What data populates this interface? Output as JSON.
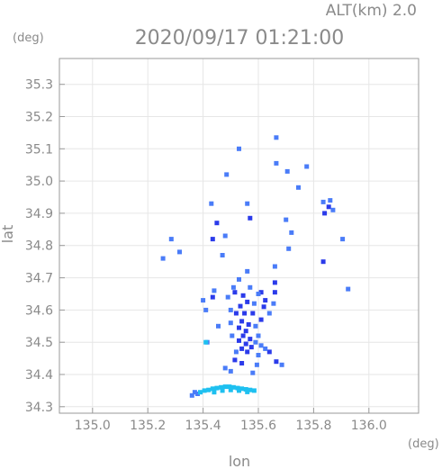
{
  "chart_data": {
    "type": "scatter",
    "title": "2020/09/17 01:21:00",
    "subtitle": "ALT(km) 2.0",
    "xlabel": "lon",
    "ylabel": "lat",
    "x_unit": "(deg)",
    "y_unit": "(deg)",
    "xlim": [
      134.88,
      136.18
    ],
    "ylim": [
      34.28,
      35.38
    ],
    "xticks": [
      135.0,
      135.2,
      135.4,
      135.6,
      135.8,
      136.0
    ],
    "xtick_labels": [
      "135.0",
      "135.2",
      "135.4",
      "135.6",
      "135.8",
      "136.0"
    ],
    "yticks": [
      34.3,
      34.4,
      34.5,
      34.6,
      34.7,
      34.8,
      34.9,
      35.0,
      35.1,
      35.2,
      35.3
    ],
    "ytick_labels": [
      "34.3",
      "34.4",
      "34.5",
      "34.6",
      "34.7",
      "34.8",
      "34.9",
      "35.0",
      "35.1",
      "35.2",
      "35.3"
    ],
    "grid": true,
    "colors": {
      "intense": "#2b3bea",
      "moderate": "#4a7cf8",
      "weak": "#1ec0f0",
      "axis": "#9a9a9a",
      "text": "#8a8a8a"
    },
    "series": [
      {
        "level": "intense",
        "points": [
          [
            135.515,
            34.655
          ],
          [
            135.545,
            34.645
          ],
          [
            135.56,
            34.625
          ],
          [
            135.535,
            34.612
          ],
          [
            135.52,
            34.59
          ],
          [
            135.55,
            34.59
          ],
          [
            135.58,
            34.59
          ],
          [
            135.54,
            34.565
          ],
          [
            135.565,
            34.555
          ],
          [
            135.53,
            34.545
          ],
          [
            135.555,
            34.535
          ],
          [
            135.545,
            34.52
          ],
          [
            135.57,
            34.51
          ],
          [
            135.53,
            34.505
          ],
          [
            135.555,
            34.495
          ],
          [
            135.575,
            34.485
          ],
          [
            135.54,
            34.48
          ],
          [
            135.56,
            34.47
          ],
          [
            135.515,
            34.445
          ],
          [
            135.54,
            34.435
          ],
          [
            135.62,
            34.61
          ],
          [
            135.625,
            34.63
          ],
          [
            135.61,
            34.655
          ],
          [
            135.66,
            34.655
          ],
          [
            135.66,
            34.685
          ],
          [
            135.665,
            34.44
          ],
          [
            135.64,
            34.47
          ],
          [
            135.435,
            34.82
          ],
          [
            135.45,
            34.87
          ],
          [
            135.57,
            34.885
          ],
          [
            135.855,
            34.92
          ],
          [
            135.84,
            34.9
          ],
          [
            135.835,
            34.75
          ],
          [
            135.435,
            34.64
          ],
          [
            135.61,
            34.57
          ]
        ]
      },
      {
        "level": "moderate",
        "points": [
          [
            135.49,
            34.64
          ],
          [
            135.5,
            34.6
          ],
          [
            135.5,
            34.56
          ],
          [
            135.505,
            34.52
          ],
          [
            135.59,
            34.55
          ],
          [
            135.6,
            34.52
          ],
          [
            135.59,
            34.5
          ],
          [
            135.6,
            34.46
          ],
          [
            135.48,
            34.42
          ],
          [
            135.5,
            34.41
          ],
          [
            135.58,
            34.405
          ],
          [
            135.595,
            34.43
          ],
          [
            135.625,
            34.48
          ],
          [
            135.61,
            34.49
          ],
          [
            135.56,
            34.72
          ],
          [
            135.53,
            34.695
          ],
          [
            135.57,
            34.67
          ],
          [
            135.51,
            34.67
          ],
          [
            135.6,
            34.65
          ],
          [
            135.585,
            34.62
          ],
          [
            135.255,
            34.76
          ],
          [
            135.285,
            34.82
          ],
          [
            135.315,
            34.78
          ],
          [
            135.43,
            34.93
          ],
          [
            135.56,
            34.93
          ],
          [
            135.7,
            34.88
          ],
          [
            135.71,
            34.79
          ],
          [
            135.72,
            34.84
          ],
          [
            135.745,
            34.98
          ],
          [
            135.775,
            35.045
          ],
          [
            135.665,
            35.055
          ],
          [
            135.705,
            35.03
          ],
          [
            135.485,
            35.02
          ],
          [
            135.53,
            35.1
          ],
          [
            135.665,
            35.135
          ],
          [
            135.925,
            34.665
          ],
          [
            135.905,
            34.82
          ],
          [
            135.86,
            34.94
          ],
          [
            135.835,
            34.935
          ],
          [
            135.87,
            34.91
          ],
          [
            135.415,
            34.5
          ],
          [
            135.41,
            34.6
          ],
          [
            135.44,
            34.66
          ],
          [
            135.4,
            34.63
          ],
          [
            135.47,
            34.77
          ],
          [
            135.48,
            34.83
          ],
          [
            135.66,
            34.735
          ],
          [
            135.655,
            34.62
          ],
          [
            135.64,
            34.59
          ],
          [
            135.685,
            34.43
          ],
          [
            135.36,
            34.335
          ],
          [
            135.38,
            34.34
          ],
          [
            135.37,
            34.345
          ],
          [
            135.52,
            34.47
          ],
          [
            135.455,
            34.55
          ]
        ]
      },
      {
        "level": "weak",
        "points": [
          [
            135.41,
            34.5
          ],
          [
            135.39,
            34.345
          ],
          [
            135.405,
            34.35
          ],
          [
            135.42,
            34.352
          ],
          [
            135.435,
            34.356
          ],
          [
            135.45,
            34.358
          ],
          [
            135.465,
            34.36
          ],
          [
            135.48,
            34.362
          ],
          [
            135.495,
            34.362
          ],
          [
            135.51,
            34.36
          ],
          [
            135.525,
            34.358
          ],
          [
            135.54,
            34.356
          ],
          [
            135.555,
            34.354
          ],
          [
            135.57,
            34.352
          ],
          [
            135.585,
            34.35
          ],
          [
            135.44,
            34.345
          ],
          [
            135.47,
            34.35
          ],
          [
            135.5,
            34.352
          ],
          [
            135.53,
            34.35
          ],
          [
            135.56,
            34.346
          ]
        ]
      }
    ]
  }
}
